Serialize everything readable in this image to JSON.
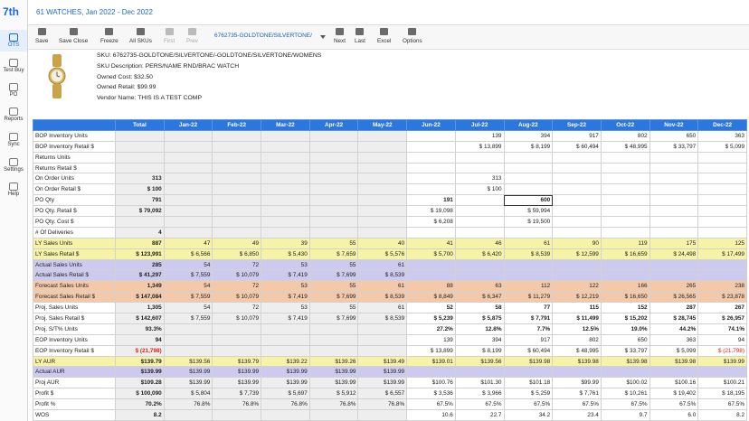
{
  "app": {
    "logo": "7th",
    "title": "61 WATCHES, Jan 2022 - Dec 2022"
  },
  "sidebar": [
    "OTS",
    "Test Buy",
    "PO",
    "Reports",
    "Sync",
    "Settings",
    "Help"
  ],
  "toolbar": {
    "left": [
      "Save",
      "Save Close",
      "Freeze",
      "All SKUs",
      "First",
      "Prev"
    ],
    "sku_select": "6762735-GOLDTONE/SILVERTONE/",
    "right": [
      "Next",
      "Last",
      "Excel",
      "Options"
    ]
  },
  "product": {
    "lines": [
      "SKU: 6762735-GOLDTONE/SILVERTONE/-GOLDTONE/SILVERTONE/WOMENS",
      "SKU Description: PERS/NAME RND/BRAC WATCH",
      "Owned Cost: $32.50",
      "Owned Retail: $99.99",
      "Vendor Name: THIS IS A TEST COMP"
    ]
  },
  "table": {
    "columns": [
      "Total",
      "Jan-22",
      "Feb-22",
      "Mar-22",
      "Apr-22",
      "May-22",
      "Jun-22",
      "Jul-22",
      "Aug-22",
      "Sep-22",
      "Oct-22",
      "Nov-22",
      "Dec-22"
    ],
    "rows": [
      {
        "label": "BOP Inventory Units",
        "cells": [
          null,
          null,
          null,
          null,
          null,
          null,
          null,
          "139",
          "394",
          "917",
          "802",
          "650",
          "363"
        ]
      },
      {
        "label": "BOP Inventory Retail $",
        "cells": [
          null,
          null,
          null,
          null,
          null,
          null,
          null,
          "$ 13,899",
          "$ 8,199",
          "$ 60,494",
          "$ 48,995",
          "$ 33,797",
          "$ 5,099"
        ]
      },
      {
        "label": "Returns Units",
        "cells": [
          null,
          null,
          null,
          null,
          null,
          null,
          null,
          null,
          null,
          null,
          null,
          null,
          null
        ]
      },
      {
        "label": "Returns Retail $",
        "cells": [
          null,
          null,
          null,
          null,
          null,
          null,
          null,
          null,
          null,
          null,
          null,
          null,
          null
        ]
      },
      {
        "label": "On Order Units",
        "cells": [
          "313",
          null,
          null,
          null,
          null,
          null,
          null,
          "313",
          null,
          null,
          null,
          null,
          null
        ]
      },
      {
        "label": "On Order Retail $",
        "cells": [
          "$ 100",
          null,
          null,
          null,
          null,
          null,
          null,
          "$ 100",
          null,
          null,
          null,
          null,
          null
        ]
      },
      {
        "label": "PO Qty",
        "cells": [
          "791",
          null,
          null,
          null,
          null,
          null,
          "191",
          null,
          "600",
          null,
          null,
          null,
          null
        ]
      },
      {
        "label": "PO Qty. Retail $",
        "cells": [
          "$ 79,092",
          null,
          null,
          null,
          null,
          null,
          "$ 19,098",
          null,
          "$ 59,994",
          null,
          null,
          null,
          null
        ]
      },
      {
        "label": "PO Qty. Cost $",
        "cells": [
          null,
          null,
          null,
          null,
          null,
          null,
          "$ 6,208",
          null,
          "$ 19,500",
          null,
          null,
          null,
          null
        ]
      },
      {
        "label": "# Of Deliveries",
        "cells": [
          "4",
          null,
          null,
          null,
          null,
          null,
          null,
          null,
          null,
          null,
          null,
          null,
          null
        ]
      },
      {
        "label": "LY Sales Units",
        "color": "#f6f3a6",
        "cells": [
          "887",
          "47",
          "49",
          "39",
          "55",
          "40",
          "41",
          "46",
          "61",
          "90",
          "119",
          "175",
          "125"
        ]
      },
      {
        "label": "LY Sales Retail $",
        "color": "#f6f3a6",
        "cells": [
          "$ 123,991",
          "$ 6,566",
          "$ 6,850",
          "$ 5,430",
          "$ 7,659",
          "$ 5,576",
          "$ 5,700",
          "$ 6,420",
          "$ 8,539",
          "$ 12,599",
          "$ 16,659",
          "$ 24,498",
          "$ 17,499"
        ]
      },
      {
        "label": "Actual Sales Units",
        "color": "#cdcaf0",
        "cells": [
          "285",
          "54",
          "72",
          "53",
          "55",
          "61",
          null,
          null,
          null,
          null,
          null,
          null,
          null
        ]
      },
      {
        "label": "Actual Sales Retail $",
        "color": "#cdcaf0",
        "cells": [
          "$ 41,297",
          "$ 7,559",
          "$ 10,079",
          "$ 7,419",
          "$ 7,699",
          "$ 8,539",
          null,
          null,
          null,
          null,
          null,
          null,
          null
        ]
      },
      {
        "label": "Forecast Sales Units",
        "color": "#f3c9aa",
        "cells": [
          "1,349",
          "54",
          "72",
          "53",
          "55",
          "61",
          "88",
          "63",
          "112",
          "122",
          "166",
          "265",
          "238"
        ]
      },
      {
        "label": "Forecast Sales Retail $",
        "color": "#f3c9aa",
        "cells": [
          "$ 147,084",
          "$ 7,559",
          "$ 10,079",
          "$ 7,419",
          "$ 7,699",
          "$ 8,539",
          "$ 8,849",
          "$ 6,347",
          "$ 11,279",
          "$ 12,219",
          "$ 16,650",
          "$ 26,565",
          "$ 23,878"
        ]
      },
      {
        "label": "Proj. Sales Units",
        "cells": [
          "1,305",
          "54",
          "72",
          "53",
          "55",
          "61",
          "52",
          "58",
          "77",
          "115",
          "152",
          "287",
          "267"
        ]
      },
      {
        "label": "Proj. Sales Retail $",
        "cells": [
          "$ 142,607",
          "$ 7,559",
          "$ 10,079",
          "$ 7,419",
          "$ 7,699",
          "$ 8,539",
          "$ 5,239",
          "$ 5,875",
          "$ 7,791",
          "$ 11,499",
          "$ 15,202",
          "$ 28,745",
          "$ 26,957"
        ]
      },
      {
        "label": "Proj. S/T% Units",
        "cells": [
          "93.3%",
          null,
          null,
          null,
          null,
          null,
          "27.2%",
          "12.8%",
          "7.7%",
          "12.5%",
          "19.0%",
          "44.2%",
          "74.1%"
        ]
      },
      {
        "label": "EOP Inventory Units",
        "cells": [
          "94",
          null,
          null,
          null,
          null,
          null,
          "139",
          "394",
          "917",
          "802",
          "650",
          "363",
          "94"
        ]
      },
      {
        "label": "EOP Inventory Retail $",
        "cells": [
          "$ (21,798)",
          null,
          null,
          null,
          null,
          null,
          "$ 13,899",
          "$ 8,199",
          "$ 60,494",
          "$ 48,995",
          "$ 33,797",
          "$ 5,099",
          "$ (21,798)"
        ]
      },
      {
        "label": "LY AUR",
        "color": "#f6f3a6",
        "cells": [
          "$139.79",
          "$139.56",
          "$139.79",
          "$139.22",
          "$139.26",
          "$139.49",
          "$139.01",
          "$139.56",
          "$139.98",
          "$139.98",
          "$139.98",
          "$139.98",
          "$139.99"
        ]
      },
      {
        "label": "Actual AUR",
        "color": "#cdcaf0",
        "cells": [
          "$139.99",
          "$139.99",
          "$139.99",
          "$139.99",
          "$139.99",
          "$139.99",
          null,
          null,
          null,
          null,
          null,
          null,
          null
        ]
      },
      {
        "label": "Proj AUR",
        "cells": [
          "$109.28",
          "$139.99",
          "$139.99",
          "$139.99",
          "$139.99",
          "$139.99",
          "$100.76",
          "$101.30",
          "$101.18",
          "$99.99",
          "$100.02",
          "$100.16",
          "$100.21"
        ]
      },
      {
        "label": "Profit $",
        "cells": [
          "$ 100,090",
          "$ 5,804",
          "$ 7,739",
          "$ 5,697",
          "$ 5,912",
          "$ 6,557",
          "$ 3,536",
          "$ 3,966",
          "$ 5,259",
          "$ 7,761",
          "$ 10,261",
          "$ 19,402",
          "$ 18,195"
        ]
      },
      {
        "label": "Profit %",
        "cells": [
          "70.2%",
          "76.8%",
          "76.8%",
          "76.8%",
          "76.8%",
          "76.8%",
          "67.5%",
          "67.5%",
          "67.5%",
          "67.5%",
          "67.5%",
          "67.5%",
          "67.5%"
        ]
      },
      {
        "label": "WOS",
        "cells": [
          "8.2",
          null,
          null,
          null,
          null,
          null,
          "10.6",
          "22.7",
          "34.2",
          "23.4",
          "9.7",
          "6.0",
          "8.2"
        ]
      }
    ]
  }
}
